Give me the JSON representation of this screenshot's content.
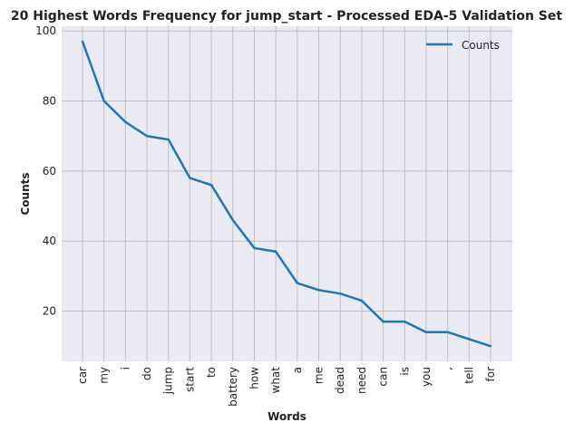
{
  "chart_data": {
    "type": "line",
    "title": "20 Highest Words Frequency for jump_start - Processed EDA-5 Validation Set",
    "xlabel": "Words",
    "ylabel": "Counts",
    "categories": [
      "car",
      "my",
      "i",
      "do",
      "jump",
      "start",
      "to",
      "battery",
      "how",
      "what",
      "a",
      "me",
      "dead",
      "need",
      "can",
      "is",
      "you",
      ",",
      "tell",
      "for"
    ],
    "series": [
      {
        "name": "Counts",
        "values": [
          97,
          80,
          74,
          70,
          69,
          58,
          56,
          46,
          38,
          37,
          28,
          26,
          25,
          23,
          17,
          17,
          14,
          14,
          12,
          10
        ]
      }
    ],
    "ylim": [
      5.65,
      101.35
    ],
    "yticks": [
      20,
      40,
      60,
      80,
      100
    ],
    "grid": true,
    "legend_position": "top-right",
    "colors": {
      "line": "#1f77b4",
      "plot_bg": "#eaeaf2",
      "grid": "#c0c0c8"
    }
  }
}
